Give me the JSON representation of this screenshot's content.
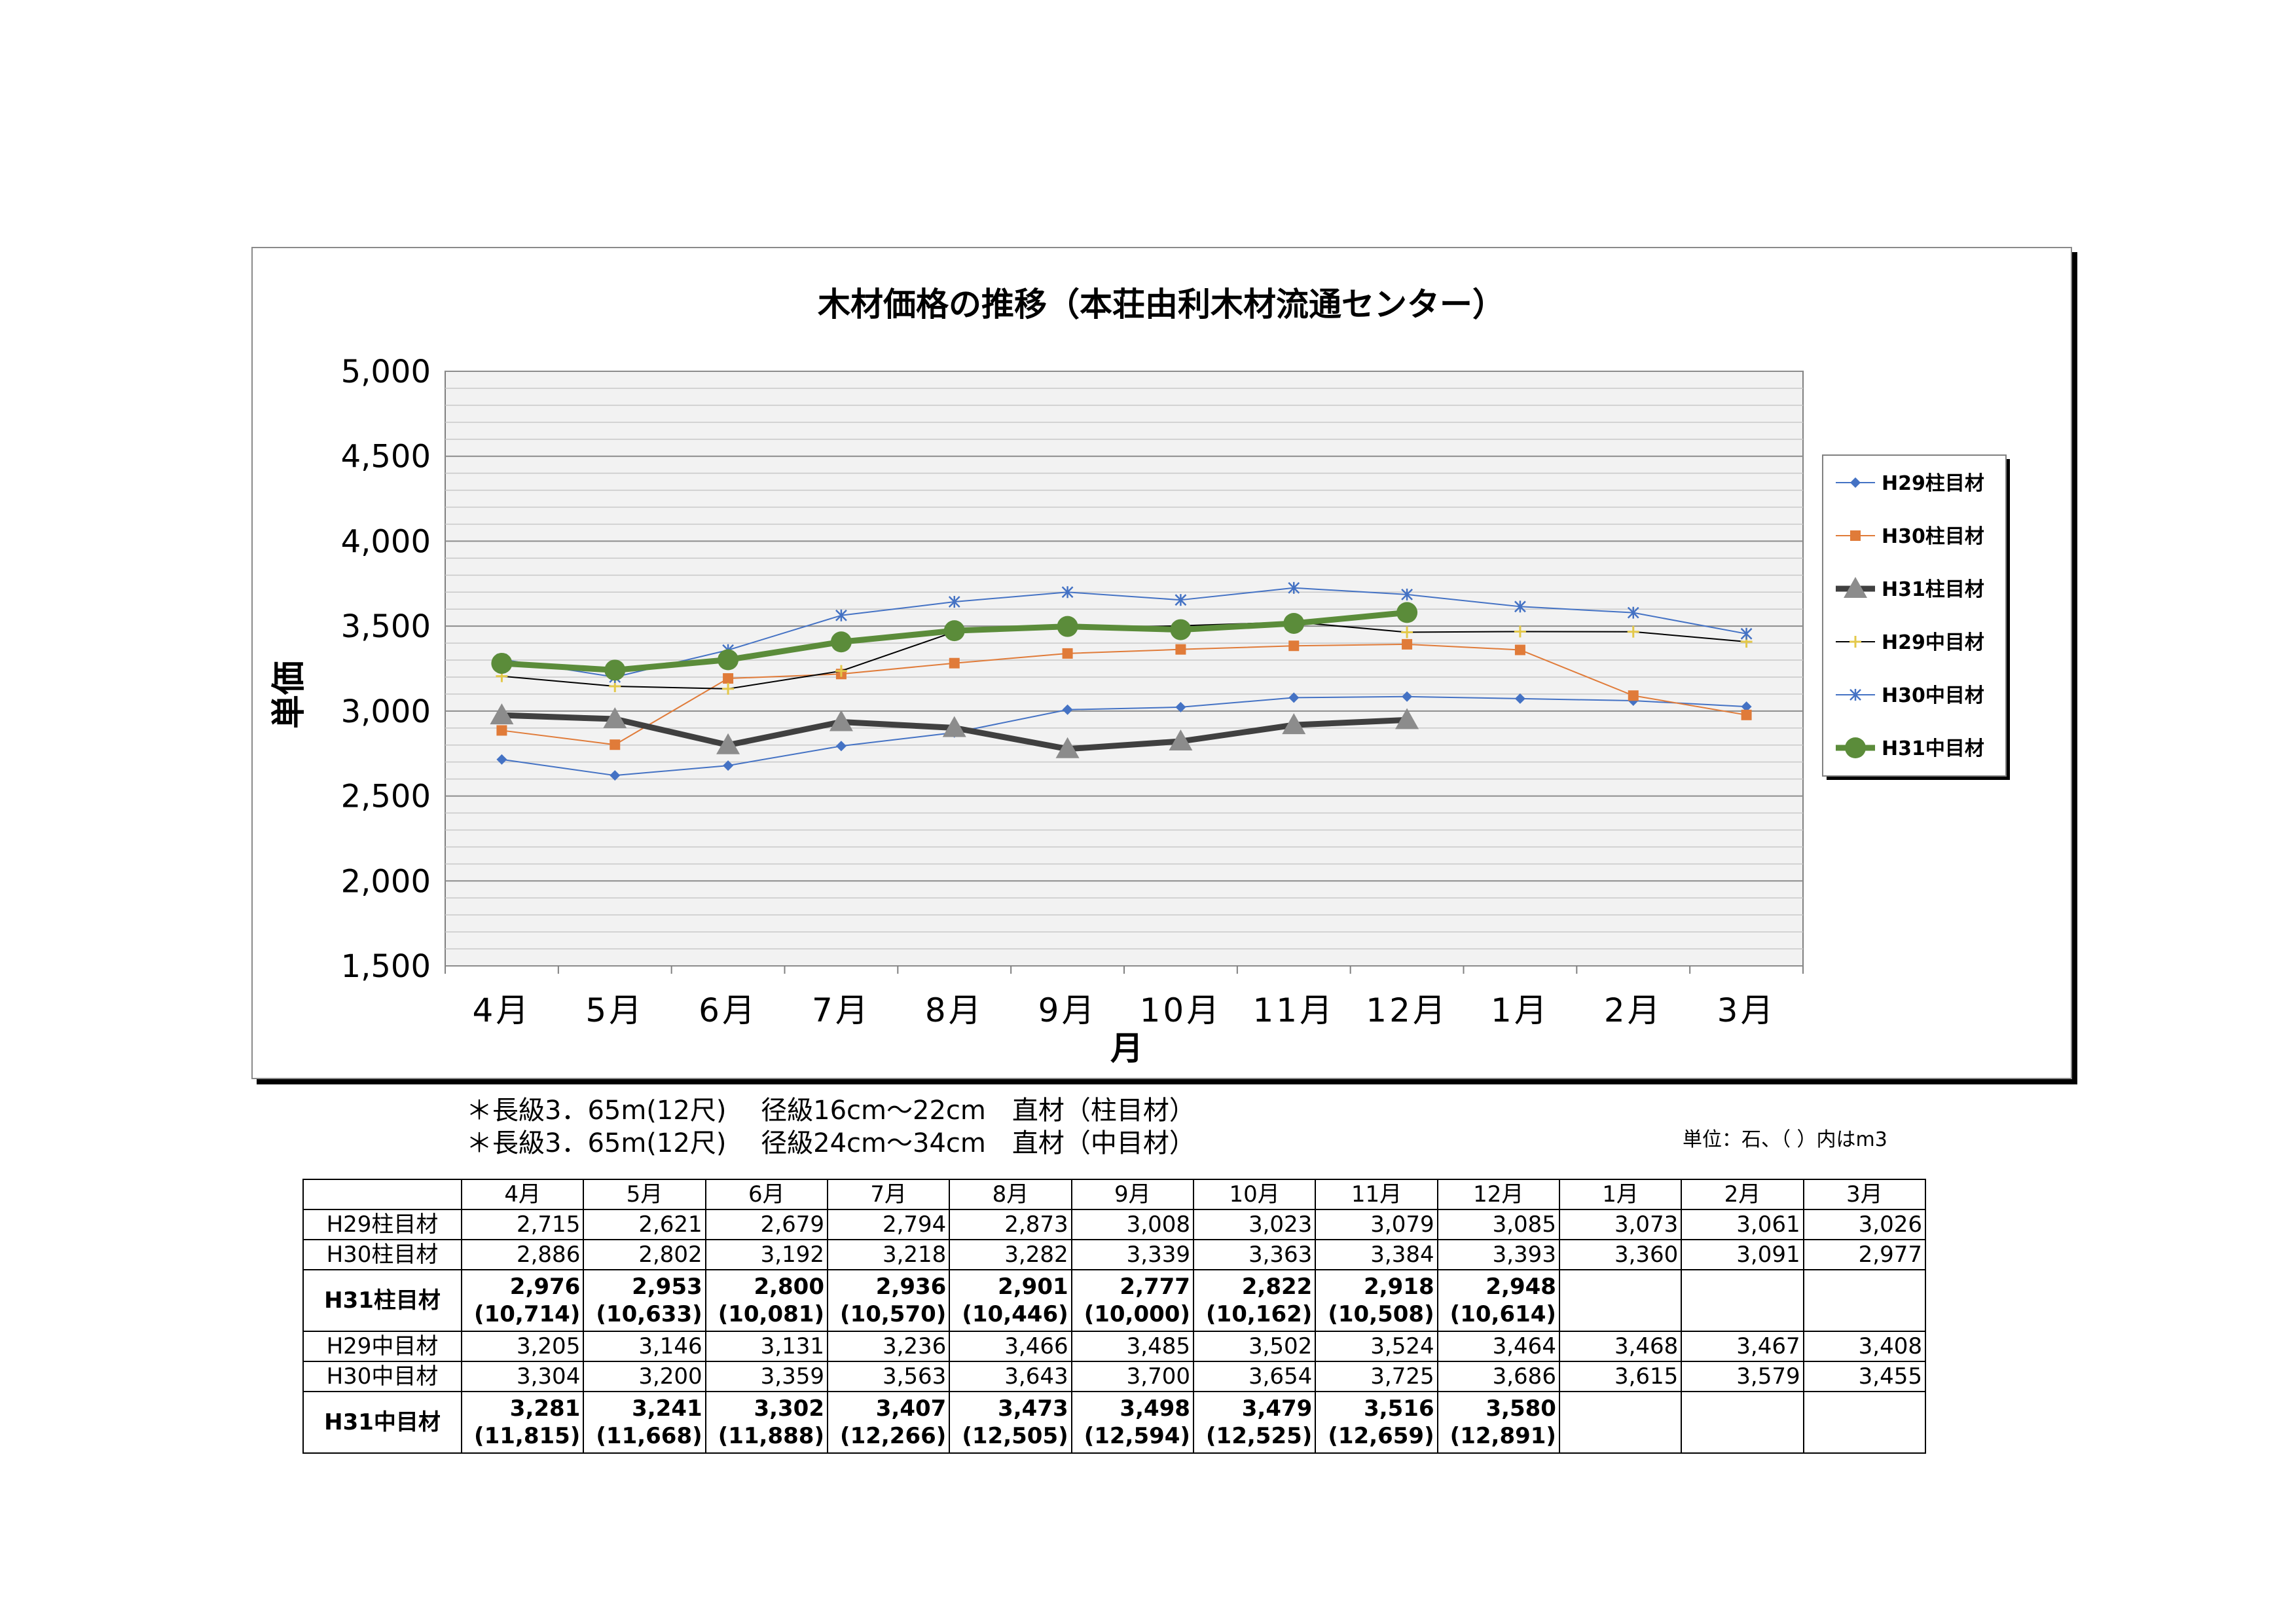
{
  "chart_data": {
    "type": "line",
    "title": "木材価格の推移（本荘由利木材流通センター）",
    "xlabel": "月",
    "ylabel": "単価",
    "ylim": [
      1500,
      5000
    ],
    "yticks": [
      "5,000",
      "4,500",
      "4,000",
      "3,500",
      "3,000",
      "2,500",
      "2,000",
      "1,500"
    ],
    "categories": [
      "4月",
      "5月",
      "6月",
      "7月",
      "8月",
      "9月",
      "10月",
      "11月",
      "12月",
      "1月",
      "2月",
      "3月"
    ],
    "grid": true,
    "legend_position": "right",
    "series": [
      {
        "name": "H29柱目材",
        "color": "#4472c4",
        "marker": "diamond",
        "width": 2,
        "values": [
          2715,
          2621,
          2679,
          2794,
          2873,
          3008,
          3023,
          3079,
          3085,
          3073,
          3061,
          3026
        ]
      },
      {
        "name": "H30柱目材",
        "color": "#e07b39",
        "marker": "square",
        "width": 2,
        "values": [
          2886,
          2802,
          3192,
          3218,
          3282,
          3339,
          3363,
          3384,
          3393,
          3360,
          3091,
          2977
        ]
      },
      {
        "name": "H31柱目材",
        "color": "#404040",
        "marker": "triangle",
        "width": 9,
        "values": [
          2976,
          2953,
          2800,
          2936,
          2901,
          2777,
          2822,
          2918,
          2948,
          null,
          null,
          null
        ]
      },
      {
        "name": "H29中目材",
        "color": "#000000",
        "marker": "plus",
        "width": 2,
        "values": [
          3205,
          3146,
          3131,
          3236,
          3466,
          3485,
          3502,
          3524,
          3464,
          3468,
          3467,
          3408
        ]
      },
      {
        "name": "H30中目材",
        "color": "#4472c4",
        "marker": "star",
        "width": 2,
        "values": [
          3304,
          3200,
          3359,
          3563,
          3643,
          3700,
          3654,
          3725,
          3686,
          3615,
          3579,
          3455
        ]
      },
      {
        "name": "H31中目材",
        "color": "#5b8c3a",
        "marker": "circle",
        "width": 9,
        "values": [
          3281,
          3241,
          3302,
          3407,
          3473,
          3498,
          3479,
          3516,
          3580,
          null,
          null,
          null
        ]
      }
    ]
  },
  "notes": {
    "line1": "＊長級3．65m(12尺)　 径級16cm～22cm　直材（柱目材）",
    "line2": "＊長級3．65m(12尺)　 径級24cm～34cm　直材（中目材）",
    "unit": "単位：石、（ ）内はm3"
  },
  "table": {
    "headers": [
      "",
      "4月",
      "5月",
      "6月",
      "7月",
      "8月",
      "9月",
      "10月",
      "11月",
      "12月",
      "1月",
      "2月",
      "3月"
    ],
    "rows": [
      {
        "label": "H29柱目材",
        "bold": false,
        "cells": [
          [
            "2,715"
          ],
          [
            "2,621"
          ],
          [
            "2,679"
          ],
          [
            "2,794"
          ],
          [
            "2,873"
          ],
          [
            "3,008"
          ],
          [
            "3,023"
          ],
          [
            "3,079"
          ],
          [
            "3,085"
          ],
          [
            "3,073"
          ],
          [
            "3,061"
          ],
          [
            "3,026"
          ]
        ]
      },
      {
        "label": "H30柱目材",
        "bold": false,
        "cells": [
          [
            "2,886"
          ],
          [
            "2,802"
          ],
          [
            "3,192"
          ],
          [
            "3,218"
          ],
          [
            "3,282"
          ],
          [
            "3,339"
          ],
          [
            "3,363"
          ],
          [
            "3,384"
          ],
          [
            "3,393"
          ],
          [
            "3,360"
          ],
          [
            "3,091"
          ],
          [
            "2,977"
          ]
        ]
      },
      {
        "label": "H31柱目材",
        "bold": true,
        "cells": [
          [
            "2,976",
            "(10,714)"
          ],
          [
            "2,953",
            "(10,633)"
          ],
          [
            "2,800",
            "(10,081)"
          ],
          [
            "2,936",
            "(10,570)"
          ],
          [
            "2,901",
            "(10,446)"
          ],
          [
            "2,777",
            "(10,000)"
          ],
          [
            "2,822",
            "(10,162)"
          ],
          [
            "2,918",
            "(10,508)"
          ],
          [
            "2,948",
            "(10,614)"
          ],
          [
            ""
          ],
          [
            ""
          ],
          [
            ""
          ]
        ]
      },
      {
        "label": "H29中目材",
        "bold": false,
        "cells": [
          [
            "3,205"
          ],
          [
            "3,146"
          ],
          [
            "3,131"
          ],
          [
            "3,236"
          ],
          [
            "3,466"
          ],
          [
            "3,485"
          ],
          [
            "3,502"
          ],
          [
            "3,524"
          ],
          [
            "3,464"
          ],
          [
            "3,468"
          ],
          [
            "3,467"
          ],
          [
            "3,408"
          ]
        ]
      },
      {
        "label": "H30中目材",
        "bold": false,
        "cells": [
          [
            "3,304"
          ],
          [
            "3,200"
          ],
          [
            "3,359"
          ],
          [
            "3,563"
          ],
          [
            "3,643"
          ],
          [
            "3,700"
          ],
          [
            "3,654"
          ],
          [
            "3,725"
          ],
          [
            "3,686"
          ],
          [
            "3,615"
          ],
          [
            "3,579"
          ],
          [
            "3,455"
          ]
        ]
      },
      {
        "label": "H31中目材",
        "bold": true,
        "cells": [
          [
            "3,281",
            "(11,815)"
          ],
          [
            "3,241",
            "(11,668)"
          ],
          [
            "3,302",
            "(11,888)"
          ],
          [
            "3,407",
            "(12,266)"
          ],
          [
            "3,473",
            "(12,505)"
          ],
          [
            "3,498",
            "(12,594)"
          ],
          [
            "3,479",
            "(12,525)"
          ],
          [
            "3,516",
            "(12,659)"
          ],
          [
            "3,580",
            "(12,891)"
          ],
          [
            ""
          ],
          [
            ""
          ],
          [
            ""
          ]
        ]
      }
    ]
  }
}
